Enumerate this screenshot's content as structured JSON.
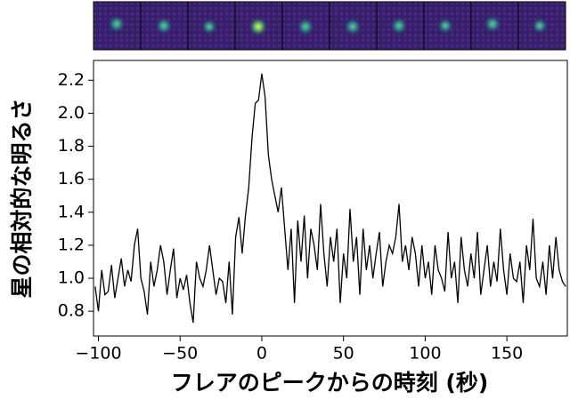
{
  "chart_data": {
    "type": "line",
    "xlabel": "フレアのピークからの時刻 (秒)",
    "ylabel": "星の相対的な明るさ",
    "xlim": [
      -103,
      187
    ],
    "ylim": [
      0.65,
      2.32
    ],
    "xticks": [
      {
        "value": -100,
        "label": "−100"
      },
      {
        "value": -50,
        "label": "−50"
      },
      0,
      50,
      100,
      150
    ],
    "yticks": [
      0.8,
      {
        "value": 1,
        "label": "1.0"
      },
      1.2,
      1.4,
      1.6,
      1.8,
      {
        "value": 2,
        "label": "2.0"
      },
      2.2
    ],
    "color": "#000000",
    "x": [
      -102,
      -100,
      -98,
      -96,
      -94,
      -92,
      -90,
      -88,
      -86,
      -84,
      -82,
      -80,
      -78,
      -76,
      -74,
      -72,
      -70,
      -68,
      -66,
      -64,
      -62,
      -60,
      -58,
      -56,
      -54,
      -52,
      -50,
      -48,
      -46,
      -44,
      -42,
      -40,
      -38,
      -36,
      -34,
      -32,
      -30,
      -28,
      -26,
      -24,
      -22,
      -20,
      -18,
      -16,
      -14,
      -12,
      -10,
      -8,
      -6,
      -4,
      -2,
      0,
      2,
      4,
      6,
      8,
      10,
      12,
      14,
      16,
      18,
      20,
      22,
      24,
      26,
      28,
      30,
      32,
      34,
      36,
      38,
      40,
      42,
      44,
      46,
      48,
      50,
      52,
      54,
      56,
      58,
      60,
      62,
      64,
      66,
      68,
      70,
      72,
      74,
      76,
      78,
      80,
      82,
      84,
      86,
      88,
      90,
      92,
      94,
      96,
      98,
      100,
      102,
      104,
      106,
      108,
      110,
      112,
      114,
      116,
      118,
      120,
      122,
      124,
      126,
      128,
      130,
      132,
      134,
      136,
      138,
      140,
      142,
      144,
      146,
      148,
      150,
      152,
      154,
      156,
      158,
      160,
      162,
      164,
      166,
      168,
      170,
      172,
      174,
      176,
      178,
      180,
      182,
      184,
      186
    ],
    "values": [
      0.95,
      0.8,
      1.05,
      0.9,
      0.92,
      1.08,
      0.88,
      1.0,
      1.12,
      0.95,
      1.05,
      0.98,
      1.2,
      1.3,
      1.0,
      0.92,
      0.78,
      1.1,
      0.95,
      1.05,
      1.2,
      1.1,
      0.9,
      1.05,
      1.18,
      0.88,
      1.0,
      0.93,
      1.02,
      0.85,
      0.73,
      1.1,
      1.0,
      0.95,
      1.05,
      1.2,
      1.05,
      0.9,
      1.0,
      0.98,
      0.85,
      1.1,
      0.78,
      1.25,
      1.37,
      1.15,
      1.38,
      1.55,
      1.85,
      2.06,
      2.08,
      2.24,
      2.1,
      1.75,
      1.6,
      1.5,
      1.4,
      1.55,
      1.3,
      1.05,
      1.3,
      0.85,
      1.35,
      1.1,
      1.38,
      1.0,
      1.3,
      1.2,
      1.05,
      1.45,
      1.15,
      0.95,
      1.25,
      1.1,
      1.3,
      0.85,
      1.15,
      1.0,
      1.42,
      1.1,
      1.25,
      0.9,
      1.3,
      1.05,
      1.2,
      1.0,
      1.15,
      1.28,
      0.95,
      1.1,
      1.2,
      1.15,
      1.25,
      1.45,
      1.1,
      1.2,
      1.05,
      1.25,
      1.15,
      0.95,
      1.2,
      1.0,
      1.1,
      0.9,
      1.2,
      1.05,
      1.0,
      0.92,
      1.28,
      1.0,
      1.1,
      0.85,
      1.25,
      1.05,
      0.95,
      1.15,
      1.0,
      1.28,
      0.9,
      1.05,
      1.2,
      0.95,
      1.1,
      0.98,
      1.3,
      1.05,
      0.9,
      1.15,
      1.0,
      0.98,
      1.1,
      0.85,
      1.2,
      1.05,
      1.36,
      1.0,
      0.95,
      1.1,
      0.9,
      1.2,
      1.0,
      1.25,
      1.05,
      0.98,
      0.95
    ]
  }
}
